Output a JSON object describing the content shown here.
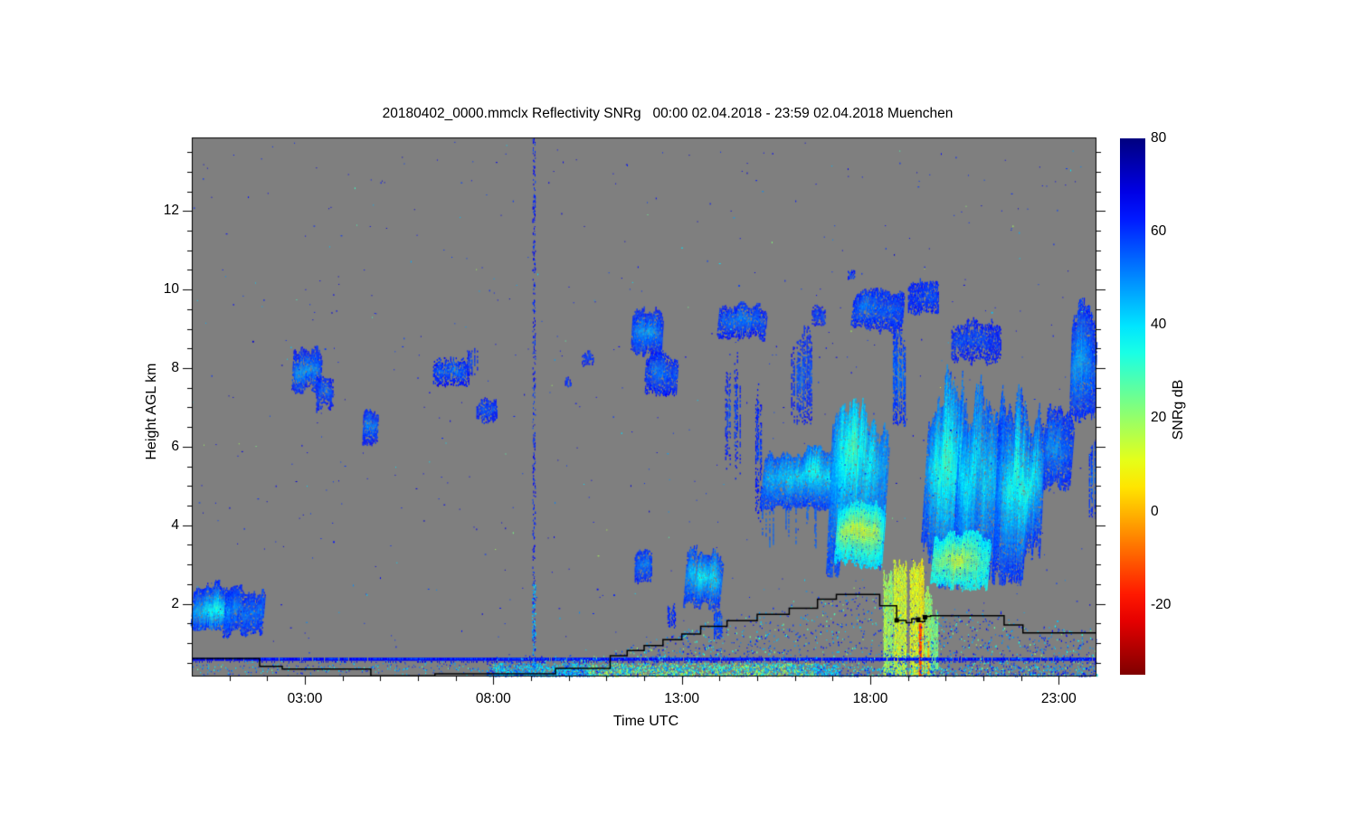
{
  "title": "20180402_0000.mmclx Reflectivity SNRg   00:00 02.04.2018 - 23:59 02.04.2018 Muenchen",
  "colors": {
    "page_bg": "#ffffff",
    "plot_bg": "#7f7f7f",
    "axis": "#000000",
    "overlay_line": "#000000"
  },
  "axes": {
    "x": {
      "label": "Time UTC",
      "range_hours": [
        0,
        24
      ],
      "minor_step": 1,
      "ticks": [
        {
          "t": 3,
          "label": "03:00"
        },
        {
          "t": 8,
          "label": "08:00"
        },
        {
          "t": 13,
          "label": "13:00"
        },
        {
          "t": 18,
          "label": "18:00"
        },
        {
          "t": 23,
          "label": "23:00"
        }
      ]
    },
    "y": {
      "label": "Height AGL km",
      "range_km": [
        0.15,
        13.87
      ],
      "minor_step": 0.5,
      "ticks": [
        {
          "h": 2,
          "label": "2"
        },
        {
          "h": 4,
          "label": "4"
        },
        {
          "h": 6,
          "label": "6"
        },
        {
          "h": 8,
          "label": "8"
        },
        {
          "h": 10,
          "label": "10"
        },
        {
          "h": 12,
          "label": "12"
        }
      ]
    }
  },
  "colorbar": {
    "label": "SNRg dB",
    "colormap": "jet",
    "range": [
      -35,
      80
    ],
    "ticks": [
      {
        "v": 80,
        "label": "80"
      },
      {
        "v": 60,
        "label": "60"
      },
      {
        "v": 40,
        "label": "40"
      },
      {
        "v": 20,
        "label": "20"
      },
      {
        "v": 0,
        "label": "0"
      },
      {
        "v": -20,
        "label": "-20"
      }
    ]
  },
  "chart_data": {
    "type": "heatmap",
    "x_unit": "hours UTC",
    "y_unit": "km AGL",
    "value_unit": "SNRg dB",
    "features": [
      {
        "k": "cloud",
        "t": [
          0.05,
          1.1
        ],
        "h": [
          1.35,
          2.62
        ],
        "v": [
          -16,
          9
        ],
        "cp": 0.55,
        "rag": 0.3,
        "g": 0.12,
        "s": 6
      },
      {
        "k": "cloud",
        "t": [
          0.9,
          1.95
        ],
        "h": [
          1.15,
          2.5
        ],
        "v": [
          -16,
          7
        ],
        "cp": 0.5,
        "rag": 0.35,
        "g": 0.15,
        "s": 6
      },
      {
        "k": "cloud",
        "t": [
          2.7,
          3.45
        ],
        "h": [
          7.35,
          8.62
        ],
        "v": [
          -18,
          -3
        ],
        "cp": 0.5,
        "rag": 0.3,
        "g": 0.22,
        "s": 4
      },
      {
        "k": "cloud",
        "t": [
          3.3,
          3.75
        ],
        "h": [
          6.9,
          7.9
        ],
        "v": [
          -18,
          -9
        ],
        "rag": 0.35,
        "g": 0.3
      },
      {
        "k": "cloud",
        "t": [
          4.55,
          4.95
        ],
        "h": [
          6.05,
          7.0
        ],
        "v": [
          -18,
          -7
        ],
        "cp": 0.45,
        "rag": 0.3,
        "g": 0.18,
        "s": 2
      },
      {
        "k": "cloud",
        "t": [
          6.4,
          7.35
        ],
        "h": [
          7.55,
          8.3
        ],
        "v": [
          -19,
          -9
        ],
        "rag": 0.3,
        "g": 0.35
      },
      {
        "k": "cloud",
        "t": [
          7.3,
          7.62
        ],
        "h": [
          7.8,
          8.6
        ],
        "v": [
          -19,
          -12
        ],
        "g": 0.4,
        "vert": 1
      },
      {
        "k": "cloud",
        "t": [
          7.55,
          8.1
        ],
        "h": [
          6.6,
          7.3
        ],
        "v": [
          -18,
          -10
        ],
        "g": 0.3
      },
      {
        "k": "cloud",
        "t": [
          9.9,
          10.05
        ],
        "h": [
          7.5,
          7.8
        ],
        "v": [
          -18,
          -14
        ],
        "g": 0.4
      },
      {
        "k": "cloud",
        "t": [
          10.35,
          10.65
        ],
        "h": [
          8.05,
          8.45
        ],
        "v": [
          -18,
          -13
        ],
        "g": 0.4
      },
      {
        "k": "cloud",
        "t": [
          11.7,
          12.5
        ],
        "h": [
          8.3,
          9.6
        ],
        "v": [
          -17,
          -4
        ],
        "cp": 0.5,
        "rag": 0.3,
        "g": 0.15,
        "s": 4
      },
      {
        "k": "cloud",
        "t": [
          12.05,
          12.9
        ],
        "h": [
          7.3,
          8.5
        ],
        "v": [
          -18,
          -8
        ],
        "rag": 0.3,
        "g": 0.2,
        "s": 4
      },
      {
        "k": "cloud",
        "t": [
          11.75,
          12.2
        ],
        "h": [
          2.45,
          3.4
        ],
        "v": [
          -17,
          -5
        ],
        "rag": 0.3,
        "g": 0.2
      },
      {
        "k": "cloud",
        "t": [
          12.62,
          12.82
        ],
        "h": [
          1.4,
          2.1
        ],
        "v": [
          -18,
          -12
        ],
        "g": 0.35,
        "vert": 1
      },
      {
        "k": "cloud",
        "t": [
          13.15,
          14.1
        ],
        "h": [
          1.75,
          3.6
        ],
        "v": [
          -15,
          5
        ],
        "cp": 0.45,
        "rag": 0.35,
        "g": 0.15,
        "s": 8
      },
      {
        "k": "cloud",
        "t": [
          13.85,
          14.05
        ],
        "h": [
          1.1,
          1.9
        ],
        "v": [
          -16,
          -7
        ],
        "g": 0.25,
        "vert": 1
      },
      {
        "k": "cloud",
        "t": [
          14.0,
          15.25
        ],
        "h": [
          8.7,
          9.7
        ],
        "v": [
          -18,
          -8
        ],
        "rag": 0.3,
        "g": 0.25,
        "s": 5
      },
      {
        "k": "cloud",
        "t": [
          14.15,
          14.55
        ],
        "h": [
          5.2,
          8.6
        ],
        "v": [
          -19,
          -13
        ],
        "g": 0.55,
        "vert": 1
      },
      {
        "k": "cloud",
        "t": [
          14.95,
          15.1
        ],
        "h": [
          3.9,
          8.4
        ],
        "v": [
          -19,
          -12
        ],
        "g": 0.5,
        "vert": 1
      },
      {
        "k": "cloud",
        "t": [
          15.2,
          17.35
        ],
        "h": [
          4.4,
          6.05
        ],
        "v": [
          -14,
          7
        ],
        "cp": 0.4,
        "rag": 0.35,
        "g": 0.12,
        "s": 10,
        "tail": 1.1
      },
      {
        "k": "cloud",
        "t": [
          15.9,
          16.45
        ],
        "h": [
          6.6,
          9.15
        ],
        "v": [
          -18,
          -9
        ],
        "g": 0.4,
        "vert": 1
      },
      {
        "k": "cloud",
        "t": [
          16.45,
          16.8
        ],
        "h": [
          9.05,
          9.65
        ],
        "v": [
          -18,
          -12
        ],
        "g": 0.35
      },
      {
        "k": "cloud",
        "t": [
          17.4,
          17.6
        ],
        "h": [
          10.25,
          10.55
        ],
        "v": [
          -18,
          -13
        ],
        "g": 0.4
      },
      {
        "k": "cloud",
        "t": [
          17.0,
          18.5
        ],
        "h": [
          2.7,
          7.25
        ],
        "v": [
          -13,
          14
        ],
        "cp": 0.3,
        "rag": 0.4,
        "g": 0.1,
        "s": 12
      },
      {
        "k": "cloud",
        "t": [
          17.15,
          18.4
        ],
        "h": [
          2.9,
          4.8
        ],
        "v": [
          4,
          30
        ],
        "cp": 0.45,
        "rag": 0.25,
        "g": 0.08,
        "s": 8
      },
      {
        "k": "cloud",
        "t": [
          17.55,
          18.9
        ],
        "h": [
          8.9,
          10.05
        ],
        "v": [
          -17,
          -7
        ],
        "rag": 0.35,
        "g": 0.2,
        "s": 5
      },
      {
        "k": "cloud",
        "t": [
          18.55,
          18.92
        ],
        "h": [
          6.5,
          9.4
        ],
        "v": [
          -16,
          -5
        ],
        "g": 0.3,
        "vert": 1
      },
      {
        "k": "cloud",
        "t": [
          19.0,
          19.8
        ],
        "h": [
          9.3,
          10.35
        ],
        "v": [
          -17,
          -9
        ],
        "rag": 0.3,
        "g": 0.25
      },
      {
        "k": "cloud",
        "t": [
          19.55,
          20.6
        ],
        "h": [
          2.4,
          8.4
        ],
        "v": [
          -14,
          10
        ],
        "cp": 0.4,
        "rag": 0.4,
        "g": 0.1,
        "s": 14
      },
      {
        "k": "cloud",
        "t": [
          20.4,
          21.6
        ],
        "h": [
          2.4,
          8.0
        ],
        "v": [
          -14,
          12
        ],
        "cp": 0.4,
        "rag": 0.45,
        "g": 0.1,
        "s": 14
      },
      {
        "k": "cloud",
        "t": [
          21.4,
          22.65
        ],
        "h": [
          2.5,
          7.6
        ],
        "v": [
          -15,
          8
        ],
        "cp": 0.45,
        "rag": 0.45,
        "g": 0.12,
        "s": 12
      },
      {
        "k": "cloud",
        "t": [
          19.7,
          21.2
        ],
        "h": [
          2.35,
          3.9
        ],
        "v": [
          8,
          33
        ],
        "cp": 0.5,
        "rag": 0.25,
        "g": 0.08,
        "s": 8
      },
      {
        "k": "cloud",
        "t": [
          20.15,
          21.45
        ],
        "h": [
          8.1,
          9.3
        ],
        "v": [
          -18,
          -10
        ],
        "rag": 0.3,
        "g": 0.3
      },
      {
        "k": "cloud",
        "t": [
          22.7,
          23.4
        ],
        "h": [
          4.9,
          7.3
        ],
        "v": [
          -16,
          0
        ],
        "cp": 0.5,
        "rag": 0.35,
        "g": 0.15,
        "s": 8
      },
      {
        "k": "cloud",
        "t": [
          23.35,
          24.0
        ],
        "h": [
          6.3,
          9.8
        ],
        "v": [
          -16,
          -2
        ],
        "cp": 0.5,
        "rag": 0.3,
        "g": 0.12,
        "s": 5
      },
      {
        "k": "cloud",
        "t": [
          23.8,
          24.0
        ],
        "h": [
          4.2,
          6.4
        ],
        "v": [
          -16,
          -6
        ],
        "g": 0.25,
        "vert": 1
      },
      {
        "k": "rain",
        "t": [
          18.35,
          18.6
        ],
        "h": [
          0.2,
          2.7
        ],
        "v": [
          20,
          34
        ]
      },
      {
        "k": "rain",
        "t": [
          18.62,
          18.95
        ],
        "h": [
          0.2,
          2.95
        ],
        "v": [
          24,
          38
        ]
      },
      {
        "k": "rain",
        "t": [
          19.05,
          19.42
        ],
        "h": [
          0.2,
          3.0
        ],
        "v": [
          27,
          40
        ]
      },
      {
        "k": "rain",
        "t": [
          19.44,
          19.62
        ],
        "h": [
          0.2,
          2.3
        ],
        "v": [
          22,
          35
        ]
      },
      {
        "k": "rain",
        "t": [
          19.63,
          19.78
        ],
        "h": [
          0.3,
          1.7
        ],
        "v": [
          12,
          24
        ]
      },
      {
        "k": "streak",
        "t": 19.29,
        "h": [
          0.18,
          1.5
        ],
        "v": 60,
        "w": 3
      },
      {
        "k": "streak",
        "t": 19.52,
        "h": [
          0.2,
          1.05
        ],
        "v": 46,
        "w": 2
      }
    ],
    "boundary_layer_line_t_km": [
      [
        0,
        0.61
      ],
      [
        1.8,
        0.61
      ],
      [
        1.8,
        0.41
      ],
      [
        2.4,
        0.41
      ],
      [
        2.4,
        0.34
      ],
      [
        4.75,
        0.34
      ],
      [
        4.75,
        0.17
      ],
      [
        6.45,
        0.17
      ],
      [
        6.45,
        0.22
      ],
      [
        9.65,
        0.22
      ],
      [
        9.65,
        0.36
      ],
      [
        11.1,
        0.36
      ],
      [
        11.1,
        0.68
      ],
      [
        11.55,
        0.68
      ],
      [
        11.55,
        0.81
      ],
      [
        12.0,
        0.81
      ],
      [
        12.0,
        0.94
      ],
      [
        12.5,
        0.94
      ],
      [
        12.5,
        1.09
      ],
      [
        13.0,
        1.09
      ],
      [
        13.0,
        1.23
      ],
      [
        13.5,
        1.23
      ],
      [
        13.5,
        1.43
      ],
      [
        14.2,
        1.43
      ],
      [
        14.2,
        1.57
      ],
      [
        15.0,
        1.57
      ],
      [
        15.0,
        1.73
      ],
      [
        15.85,
        1.73
      ],
      [
        15.85,
        1.89
      ],
      [
        16.6,
        1.89
      ],
      [
        16.6,
        2.12
      ],
      [
        17.1,
        2.12
      ],
      [
        17.1,
        2.24
      ],
      [
        18.25,
        2.24
      ],
      [
        18.25,
        1.95
      ],
      [
        18.7,
        1.95
      ],
      [
        18.7,
        1.58
      ],
      [
        18.95,
        1.58
      ],
      [
        18.95,
        1.52
      ],
      [
        19.1,
        1.52
      ],
      [
        19.1,
        1.62
      ],
      [
        19.25,
        1.62
      ],
      [
        19.25,
        1.55
      ],
      [
        19.45,
        1.55
      ],
      [
        19.45,
        1.68
      ],
      [
        19.6,
        1.68
      ],
      [
        19.6,
        1.7
      ],
      [
        21.55,
        1.7
      ],
      [
        21.55,
        1.46
      ],
      [
        22.05,
        1.46
      ],
      [
        22.05,
        1.26
      ],
      [
        24,
        1.26
      ]
    ],
    "line_markers_t_km": [
      [
        18.7,
        1.58
      ],
      [
        19.27,
        1.6
      ],
      [
        19.45,
        1.66
      ]
    ],
    "ground_clutter": {
      "band_km": [
        0.5,
        0.63
      ],
      "dot_line_km": [
        0.3,
        0.42
      ]
    },
    "interference_column": {
      "t": 9.07,
      "n": 340
    },
    "speckle": {
      "global_n": 620,
      "dome_n": 3300,
      "bottom_n": 1500,
      "left_n": 240
    }
  }
}
